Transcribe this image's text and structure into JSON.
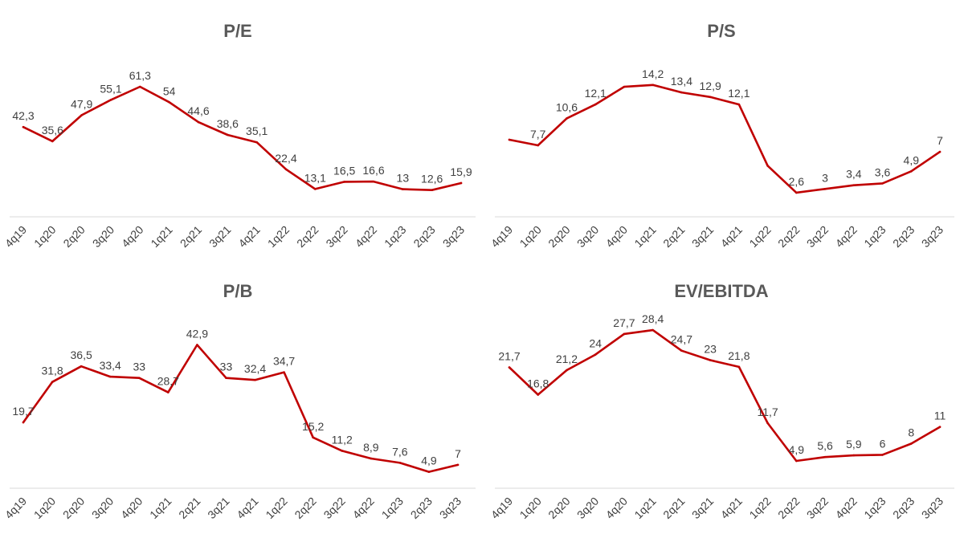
{
  "theme": {
    "line_color": "#c00000",
    "text_color": "#404040",
    "title_color": "#595959",
    "axis_color": "#d9d9d9"
  },
  "chart_data": [
    {
      "type": "line",
      "title": "P/E",
      "categories": [
        "4q19",
        "1q20",
        "2q20",
        "3q20",
        "4q20",
        "1q21",
        "2q21",
        "3q21",
        "4q21",
        "1q22",
        "2q22",
        "3q22",
        "4q22",
        "1q23",
        "2q23",
        "3q23"
      ],
      "values": [
        42.3,
        35.6,
        47.9,
        55.1,
        61.3,
        54,
        44.6,
        38.6,
        35.1,
        22.4,
        13.1,
        16.5,
        16.6,
        13,
        12.6,
        15.9
      ],
      "data_labels": [
        "42,3",
        "35,6",
        "47,9",
        "55,1",
        "61,3",
        "54",
        "44,6",
        "38,6",
        "35,1",
        "22,4",
        "13,1",
        "16,5",
        "16,6",
        "13",
        "12,6",
        "15,9"
      ],
      "ylim": [
        0,
        70
      ],
      "xlabel": "",
      "ylabel": "",
      "grid": false,
      "legend": "none"
    },
    {
      "type": "line",
      "title": "P/S",
      "categories": [
        "4q19",
        "1q20",
        "2q20",
        "3q20",
        "4q20",
        "1q21",
        "2q21",
        "3q21",
        "4q21",
        "1q22",
        "2q22",
        "3q22",
        "4q22",
        "1q23",
        "2q23",
        "3q23"
      ],
      "values": [
        8.3,
        7.7,
        10.6,
        12.1,
        14.0,
        14.2,
        13.4,
        12.9,
        12.1,
        5.5,
        2.6,
        3,
        3.4,
        3.6,
        4.9,
        7
      ],
      "data_labels": [
        "",
        "7,7",
        "10,6",
        "12,1",
        "",
        "14,2",
        "13,4",
        "12,9",
        "12,1",
        "",
        "2,6",
        "3",
        "3,4",
        "3,6",
        "4,9",
        "7"
      ],
      "ylim": [
        0,
        16
      ],
      "xlabel": "",
      "ylabel": "",
      "grid": false,
      "legend": "none"
    },
    {
      "type": "line",
      "title": "P/B",
      "categories": [
        "4q19",
        "1q20",
        "2q20",
        "3q20",
        "4q20",
        "1q21",
        "2q21",
        "3q21",
        "4q21",
        "1q22",
        "2q22",
        "3q22",
        "4q22",
        "1q23",
        "2q23",
        "3q23"
      ],
      "values": [
        19.7,
        31.8,
        36.5,
        33.4,
        33,
        28.7,
        42.9,
        33,
        32.4,
        34.7,
        15.2,
        11.2,
        8.9,
        7.6,
        4.9,
        7
      ],
      "data_labels": [
        "19,7",
        "31,8",
        "36,5",
        "33,4",
        "33",
        "28,7",
        "42,9",
        "33",
        "32,4",
        "34,7",
        "15,2",
        "11,2",
        "8,9",
        "7,6",
        "4,9",
        "7"
      ],
      "ylim": [
        0,
        50
      ],
      "xlabel": "",
      "ylabel": "",
      "grid": false,
      "legend": "none"
    },
    {
      "type": "line",
      "title": "EV/EBITDA",
      "categories": [
        "4q19",
        "1q20",
        "2q20",
        "3q20",
        "4q20",
        "1q21",
        "2q21",
        "3q21",
        "4q21",
        "1q22",
        "2q22",
        "3q22",
        "4q22",
        "1q23",
        "2q23",
        "3q23"
      ],
      "values": [
        21.7,
        16.8,
        21.2,
        24,
        27.7,
        28.4,
        24.7,
        23,
        21.8,
        11.7,
        4.9,
        5.6,
        5.9,
        6,
        8,
        11
      ],
      "data_labels": [
        "21,7",
        "16,8",
        "21,2",
        "24",
        "27,7",
        "28,4",
        "24,7",
        "23",
        "21,8",
        "11,7",
        "4,9",
        "5,6",
        "5,9",
        "6",
        "8",
        "11"
      ],
      "ylim": [
        0,
        30
      ],
      "xlabel": "",
      "ylabel": "",
      "grid": false,
      "legend": "none"
    }
  ]
}
